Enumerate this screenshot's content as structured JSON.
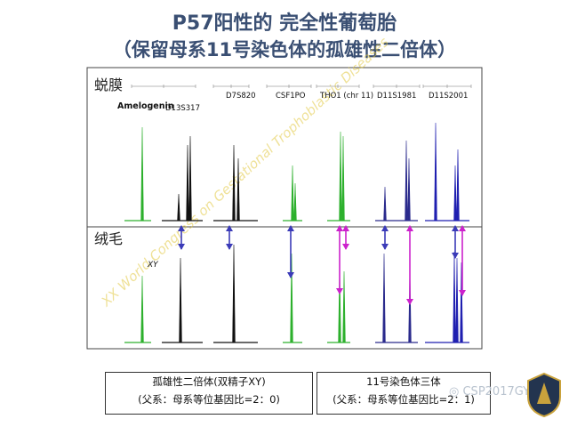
{
  "title_line1": "P57阳性的 完全性葡萄胎",
  "title_line2": "（保留母系11号染色体的孤雄性二倍体）",
  "row_top_label": "蜕膜",
  "row_bottom_label": "绒毛",
  "markers": [
    "Amelogenin",
    "D13S317",
    "D7S820",
    "CSF1PO",
    "THO1 (chr 11)",
    "D11S1981",
    "D11S2001"
  ],
  "xy_label": "XY",
  "watermark_diag": "XX World Congress on Gestational Trophoblastic Diseases",
  "box_left_line1": "孤雄性二倍体(双精子XY)",
  "box_left_line2": "(父系：母系等位基因比=2：0)",
  "box_right_line1": "11号染色体三体",
  "box_right_line2": "(父系：母系等位基因比=2：1)",
  "wechat_watermark": "CSP2017GYN",
  "colors": {
    "title": "#3a4f73",
    "green": "#2db02d",
    "black": "#111111",
    "blue": "#1f1fb0",
    "navy": "#2a2a8c",
    "magenta": "#cc22cc",
    "arrow_blue": "#3b3bb8"
  }
}
